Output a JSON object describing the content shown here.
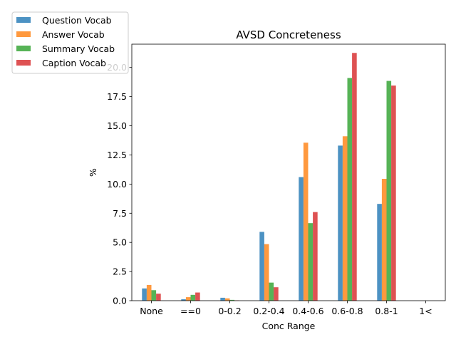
{
  "chart_data": {
    "type": "bar",
    "title": "AVSD Concreteness",
    "xlabel": "Conc Range",
    "ylabel": "%",
    "categories": [
      "None",
      "==0",
      "0-0.2",
      "0.2-0.4",
      "0.4-0.6",
      "0.6-0.8",
      "0.8-1",
      "1<"
    ],
    "ylim": [
      0,
      22
    ],
    "yticks": [
      "0.0",
      "2.5",
      "5.0",
      "7.5",
      "10.0",
      "12.5",
      "15.0",
      "17.5",
      "20.0"
    ],
    "grid": false,
    "legend_position": "upper-left",
    "series": [
      {
        "name": "Question Vocab",
        "color": "#1f77b4",
        "values": [
          1.05,
          0.12,
          0.25,
          5.9,
          10.6,
          13.3,
          8.3,
          0
        ]
      },
      {
        "name": "Answer Vocab",
        "color": "#ff7f0e",
        "values": [
          1.35,
          0.3,
          0.2,
          4.85,
          13.55,
          14.1,
          10.45,
          0
        ]
      },
      {
        "name": "Summary Vocab",
        "color": "#2ca02c",
        "values": [
          0.9,
          0.5,
          0.07,
          1.55,
          6.65,
          19.1,
          18.85,
          0
        ]
      },
      {
        "name": "Caption Vocab",
        "color": "#d62728",
        "values": [
          0.6,
          0.7,
          0.03,
          1.15,
          7.6,
          21.25,
          18.45,
          0
        ]
      }
    ]
  }
}
